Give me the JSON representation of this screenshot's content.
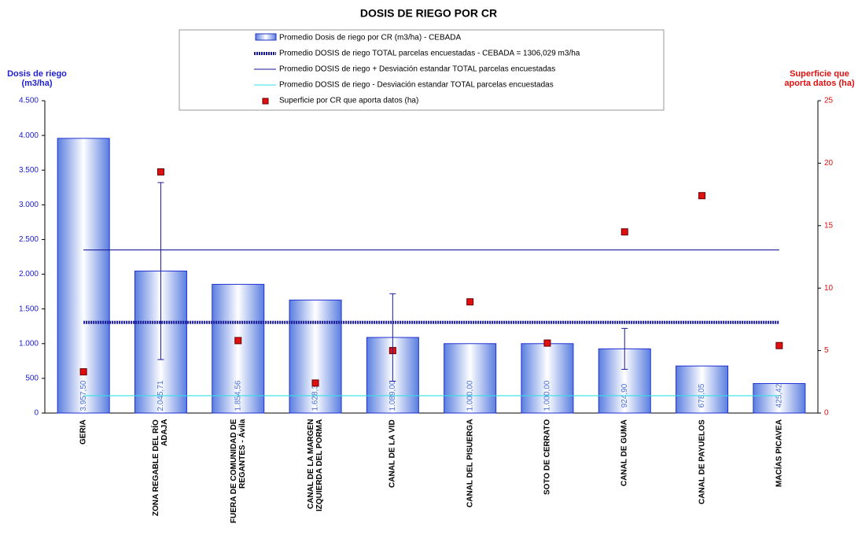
{
  "chart_data": {
    "type": "bar",
    "title": "DOSIS DE RIEGO POR CR",
    "y_label": "Dosis de riego (m3/ha)",
    "y2_label": "Superficie que aporta datos (ha)",
    "categories": [
      "GERIA",
      "ZONA REGABLE DEL RÍO ADAJA",
      "FUERA DE COMUNIDAD DE REGANTES - Ávila",
      "CANAL DE LA MARGEN IZQUIERDA DEL PORMA",
      "CANAL DE LA VID",
      "CANAL DEL PISUERGA",
      "SOTO DE CERRATO",
      "CANAL DE GUMA",
      "CANAL DE PAYUELOS",
      "MACÍAS PICAVEA"
    ],
    "series": [
      {
        "name": "Promedio Dosis de riego por CR (m3/ha) - CEBADA",
        "type": "bar",
        "color": "#4a6fd8",
        "values": [
          3957.5,
          2045.71,
          1854.56,
          1628.35,
          1089.0,
          1000.0,
          1000.0,
          924.9,
          678.05,
          425.42
        ],
        "value_labels": [
          "3.957,50",
          "2.045,71",
          "1.854,56",
          "1.628,35",
          "1.089,00",
          "1.000,00",
          "1.000,00",
          "924,90",
          "678,05",
          "425,42"
        ],
        "errors": [
          null,
          1275,
          null,
          null,
          630,
          null,
          null,
          295,
          null,
          null
        ]
      },
      {
        "name": "Promedio DOSIS de riego TOTAL parcelas encuestadas - CEBADA = 1306,029 m3/ha",
        "type": "line",
        "style": "dotted",
        "color": "#1a1a9a",
        "values": [
          1306.029,
          1306.029,
          1306.029,
          1306.029,
          1306.029,
          1306.029,
          1306.029,
          1306.029,
          1306.029,
          1306.029
        ]
      },
      {
        "name": "Promedio DOSIS de riego + Desviación estandar TOTAL parcelas encuestadas",
        "type": "line",
        "style": "solid",
        "color": "#1a1a9a",
        "values": [
          2350,
          2350,
          2350,
          2350,
          2350,
          2350,
          2350,
          2350,
          2350,
          2350
        ]
      },
      {
        "name": "Promedio DOSIS de riego - Desviación estandar TOTAL parcelas encuestadas",
        "type": "line",
        "style": "solid",
        "color": "#33e0e8",
        "values": [
          250,
          250,
          250,
          250,
          250,
          250,
          250,
          250,
          250,
          250
        ]
      },
      {
        "name": "Superficie por CR que aporta datos (ha)",
        "type": "scatter",
        "axis": "y2",
        "color": "#e01010",
        "values": [
          3.3,
          19.3,
          5.8,
          2.4,
          5.0,
          8.9,
          5.6,
          14.5,
          17.4,
          5.4
        ]
      }
    ],
    "ylim": [
      0,
      4500
    ],
    "yticks": [
      0,
      500,
      {
        "value": 1000,
        "label": "1.000"
      },
      {
        "value": 1500,
        "label": "1.500"
      },
      {
        "value": 2000,
        "label": "2.000"
      },
      {
        "value": 2500,
        "label": "2.500"
      },
      {
        "value": 3000,
        "label": "3.000"
      },
      {
        "value": 3500,
        "label": "3.500"
      },
      {
        "value": 4000,
        "label": "4.000"
      },
      {
        "value": 4500,
        "label": "4.500"
      }
    ],
    "y2lim": [
      0,
      25
    ],
    "y2ticks": [
      0,
      5,
      10,
      15,
      20,
      25
    ]
  }
}
